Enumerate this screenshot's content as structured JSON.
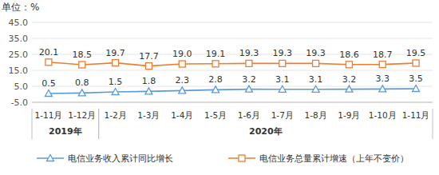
{
  "chart_data": {
    "type": "line",
    "y_label": "单位：%",
    "categories": [
      "1-11月",
      "1-12月",
      "1-2月",
      "1-3月",
      "1-4月",
      "1-5月",
      "1-6月",
      "1-7月",
      "1-8月",
      "1-9月",
      "1-10月",
      "1-11月"
    ],
    "category_groups": [
      {
        "label": "2019年",
        "start": 0,
        "end": 1
      },
      {
        "label": "2020年",
        "start": 2,
        "end": 11
      }
    ],
    "series": [
      {
        "name": "电信业务收入累计同比增长",
        "color": "#5b9bd5",
        "marker": "triangle",
        "line_style": "solid",
        "values": [
          0.5,
          0.8,
          1.5,
          1.8,
          2.3,
          2.8,
          3.2,
          3.1,
          3.1,
          3.2,
          3.3,
          3.5
        ]
      },
      {
        "name": "电信业务总量累计增速（上年不变价）",
        "color": "#ed7d31",
        "marker": "square",
        "line_style": "solid",
        "values": [
          20.1,
          18.5,
          19.7,
          17.7,
          19.0,
          19.1,
          19.3,
          19.3,
          19.3,
          18.6,
          18.7,
          19.5
        ],
        "value_labels": [
          "20.1",
          "18.5",
          "19.7",
          "17.7",
          "19.0",
          "19.1",
          "19.3",
          "19.3",
          "19.3",
          "18.6",
          "18.7",
          "19.5"
        ]
      }
    ],
    "ylim": [
      -5,
      45
    ],
    "yticks": [
      {
        "value": -5,
        "label": "-5.0"
      },
      {
        "value": 5,
        "label": "5.0"
      },
      {
        "value": 15,
        "label": "15.0"
      },
      {
        "value": 25,
        "label": "25.0"
      },
      {
        "value": 35,
        "label": "35.0"
      },
      {
        "value": 45,
        "label": "45.0"
      }
    ],
    "grid": true,
    "data_labels": true,
    "legend": "bottom"
  }
}
